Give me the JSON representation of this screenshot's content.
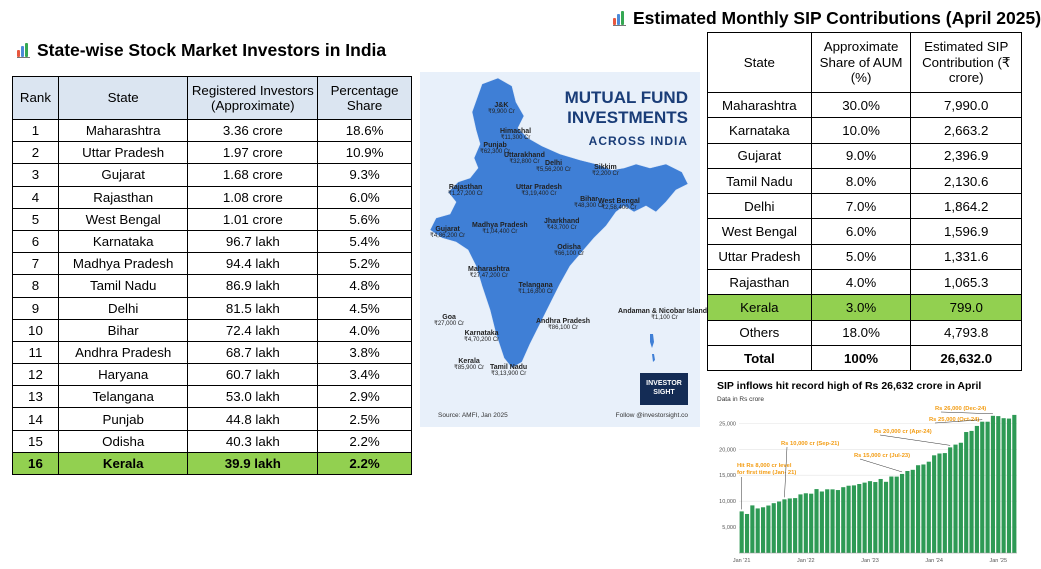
{
  "left_title": "State-wise Stock Market Investors in India",
  "right_title": "Estimated Monthly SIP Contributions (April 2025)",
  "investors_table": {
    "headers": [
      "Rank",
      "State",
      "Registered Investors (Approximate)",
      "Percentage Share"
    ],
    "rows": [
      [
        "1",
        "Maharashtra",
        "3.36 crore",
        "18.6%"
      ],
      [
        "2",
        "Uttar Pradesh",
        "1.97 crore",
        "10.9%"
      ],
      [
        "3",
        "Gujarat",
        "1.68 crore",
        "9.3%"
      ],
      [
        "4",
        "Rajasthan",
        "1.08 crore",
        "6.0%"
      ],
      [
        "5",
        "West Bengal",
        "1.01 crore",
        "5.6%"
      ],
      [
        "6",
        "Karnataka",
        "96.7 lakh",
        "5.4%"
      ],
      [
        "7",
        "Madhya Pradesh",
        "94.4 lakh",
        "5.2%"
      ],
      [
        "8",
        "Tamil Nadu",
        "86.9 lakh",
        "4.8%"
      ],
      [
        "9",
        "Delhi",
        "81.5 lakh",
        "4.5%"
      ],
      [
        "10",
        "Bihar",
        "72.4 lakh",
        "4.0%"
      ],
      [
        "11",
        "Andhra Pradesh",
        "68.7 lakh",
        "3.8%"
      ],
      [
        "12",
        "Haryana",
        "60.7 lakh",
        "3.4%"
      ],
      [
        "13",
        "Telangana",
        "53.0 lakh",
        "2.9%"
      ],
      [
        "14",
        "Punjab",
        "44.8 lakh",
        "2.5%"
      ],
      [
        "15",
        "Odisha",
        "40.3 lakh",
        "2.2%"
      ],
      [
        "16",
        "Kerala",
        "39.9 lakh",
        "2.2%"
      ]
    ],
    "highlight_row": "Kerala",
    "header_color": "#dbe5f1",
    "highlight_color": "#92d050"
  },
  "sip_table": {
    "headers": [
      "State",
      "Approximate Share of AUM (%)",
      "Estimated SIP Contribution (₹ crore)"
    ],
    "rows": [
      [
        "Maharashtra",
        "30.0%",
        "7,990.0"
      ],
      [
        "Karnataka",
        "10.0%",
        "2,663.2"
      ],
      [
        "Gujarat",
        "9.0%",
        "2,396.9"
      ],
      [
        "Tamil Nadu",
        "8.0%",
        "2,130.6"
      ],
      [
        "Delhi",
        "7.0%",
        "1,864.2"
      ],
      [
        "West Bengal",
        "6.0%",
        "1,596.9"
      ],
      [
        "Uttar Pradesh",
        "5.0%",
        "1,331.6"
      ],
      [
        "Rajasthan",
        "4.0%",
        "1,065.3"
      ],
      [
        "Kerala",
        "3.0%",
        "799.0"
      ],
      [
        "Others",
        "18.0%",
        "4,793.8"
      ],
      [
        "Total",
        "100%",
        "26,632.0"
      ]
    ],
    "highlight_row": "Kerala",
    "total_row": "Total"
  },
  "infographic": {
    "title_line1": "MUTUAL FUND",
    "title_line2": "INVESTMENTS",
    "subtitle": "ACROSS INDIA",
    "source": "Source: AMFI, Jan 2025",
    "follow": "Follow @investorsight.co",
    "logo_line1": "INVESTOR",
    "logo_line2": "SIGHT",
    "map_color": "#3f7fd6",
    "labels": [
      {
        "name": "J&K",
        "value": "₹9,900 Cr"
      },
      {
        "name": "Himachal",
        "value": "₹11,300 Cr"
      },
      {
        "name": "Punjab",
        "value": "₹62,300 Cr"
      },
      {
        "name": "Uttarakhand",
        "value": "₹32,800 Cr"
      },
      {
        "name": "Delhi",
        "value": "₹5,56,200 Cr"
      },
      {
        "name": "Rajasthan",
        "value": "₹1,27,200 Cr"
      },
      {
        "name": "Uttar Pradesh",
        "value": "₹3,19,400 Cr"
      },
      {
        "name": "Sikkim",
        "value": "₹2,200 Cr"
      },
      {
        "name": "Bihar",
        "value": "₹48,300 Cr"
      },
      {
        "name": "Gujarat",
        "value": "₹4,86,200 Cr"
      },
      {
        "name": "Madhya Pradesh",
        "value": "₹1,04,400 Cr"
      },
      {
        "name": "Jharkhand",
        "value": "₹43,700 Cr"
      },
      {
        "name": "West Bengal",
        "value": "₹2,58,400 Cr"
      },
      {
        "name": "Odisha",
        "value": "₹66,100 Cr"
      },
      {
        "name": "Maharashtra",
        "value": "₹27,47,200 Cr"
      },
      {
        "name": "Telangana",
        "value": "₹1,16,800 Cr"
      },
      {
        "name": "Goa",
        "value": "₹27,000 Cr"
      },
      {
        "name": "Andhra Pradesh",
        "value": "₹86,100 Cr"
      },
      {
        "name": "Karnataka",
        "value": "₹4,70,200 Cr"
      },
      {
        "name": "Kerala",
        "value": "₹85,900 Cr"
      },
      {
        "name": "Tamil Nadu",
        "value": "₹3,13,900 Cr"
      },
      {
        "name": "Andaman & Nicobar Islands",
        "value": "₹1,100 Cr"
      }
    ]
  },
  "chart": {
    "title": "SIP inflows hit record high of Rs 26,632 crore in April",
    "subtitle": "Data in Rs crore"
  },
  "chart_data": {
    "type": "bar",
    "title": "SIP inflows hit record high of Rs 26,632 crore in April",
    "subtitle": "Data in Rs crore",
    "ylim": [
      0,
      27000
    ],
    "yticks": [
      0,
      5000,
      10000,
      15000,
      20000,
      25000
    ],
    "ytick_labels": [
      "",
      "5,000",
      "10,000",
      "15,000",
      "20,000",
      "25,000"
    ],
    "xtick_labels": [
      "Jan '21",
      "Jan '22",
      "Jan '23",
      "Jan '24",
      "Jan '25"
    ],
    "xtick_index": [
      0,
      12,
      24,
      36,
      48
    ],
    "grid": true,
    "bar_color": "#2e9a55",
    "annotation_color": "#f39c12",
    "categories_start": "Jan 2021",
    "categories_end": "Apr 2025",
    "values": [
      8023,
      7528,
      9182,
      8596,
      8819,
      9156,
      9609,
      9923,
      10351,
      10519,
      10587,
      11305,
      11517,
      11438,
      12328,
      11863,
      12286,
      12276,
      12140,
      12693,
      12976,
      13041,
      13306,
      13573,
      13856,
      13686,
      14276,
      13728,
      14749,
      14734,
      15245,
      15814,
      16042,
      16928,
      17073,
      17610,
      18838,
      19187,
      19271,
      20371,
      20904,
      21262,
      23332,
      23547,
      24509,
      25323,
      25320,
      26459,
      26400,
      25999,
      25926,
      26632
    ],
    "annotations": [
      {
        "text": "Hit Rs 8,000 cr level for first time (Jan- 21)",
        "index": 0
      },
      {
        "text": "Rs 10,000 cr (Sep-21)",
        "index": 8
      },
      {
        "text": "Rs 15,000 cr (Jul-23)",
        "index": 30
      },
      {
        "text": "Rs 20,000 cr (Apr-24)",
        "index": 39
      },
      {
        "text": "Rs 25,000 (Oct-24)",
        "index": 45
      },
      {
        "text": "Rs 26,000 (Dec-24)",
        "index": 47
      }
    ]
  }
}
